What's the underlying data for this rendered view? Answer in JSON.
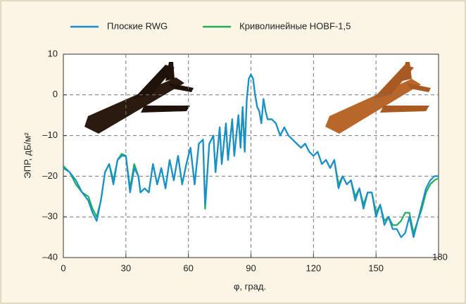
{
  "chart_data": {
    "type": "line",
    "xlabel": "φ, град.",
    "ylabel": "ЭПР, дБ/м²",
    "xlim": [
      0,
      180
    ],
    "ylim": [
      -40,
      10
    ],
    "xticks": [
      0,
      30,
      60,
      90,
      120,
      150,
      180
    ],
    "yticks": [
      10,
      0,
      {
        "value": -10,
        "label": "–10"
      },
      {
        "value": -20,
        "label": "–20"
      },
      {
        "value": -30,
        "label": "–30"
      },
      {
        "value": -40,
        "label": "–40"
      }
    ],
    "grid": true,
    "legend": "top",
    "x": [
      0,
      3,
      6,
      9,
      12,
      14,
      16,
      18,
      20,
      22,
      24,
      26,
      28,
      30,
      32,
      34,
      36,
      37,
      39,
      41,
      43,
      45,
      47,
      49,
      51,
      53,
      55,
      57,
      59,
      61,
      63,
      65,
      67,
      68,
      70,
      72,
      73,
      75,
      76,
      78,
      79,
      81,
      82,
      84,
      85,
      86,
      87,
      88,
      89,
      90,
      91,
      92,
      93,
      94,
      95,
      96,
      97,
      98,
      100,
      102,
      104,
      106,
      108,
      110,
      112,
      114,
      116,
      118,
      120,
      122,
      124,
      126,
      128,
      130,
      132,
      134,
      136,
      138,
      140,
      142,
      144,
      146,
      148,
      150,
      152,
      154,
      156,
      158,
      160,
      162,
      164,
      166,
      168,
      170,
      172,
      174,
      176,
      178,
      180
    ],
    "series": [
      {
        "name": "Плоские RWG",
        "color": "#1a8fc9",
        "values": [
          -18,
          -19,
          -21,
          -24,
          -26,
          -29,
          -31,
          -26,
          -19,
          -17,
          -22,
          -16,
          -15,
          -15,
          -24,
          -18,
          -20,
          -24,
          -23,
          -24,
          -17,
          -22,
          -18,
          -23,
          -16,
          -21,
          -15,
          -22,
          -17,
          -13,
          -22,
          -12,
          -11,
          -27,
          -12,
          -10,
          -19,
          -8,
          -17,
          -7,
          -16,
          -6,
          -15,
          -5,
          -13,
          -3,
          -14,
          -1,
          4,
          5,
          4,
          0,
          -3,
          -4,
          -7,
          -1,
          -4,
          -6,
          -6,
          -7,
          -10,
          -8,
          -10,
          -11,
          -12,
          -13,
          -12,
          -14,
          -15,
          -14,
          -17,
          -16,
          -18,
          -16,
          -23,
          -20,
          -22,
          -21,
          -26,
          -23,
          -28,
          -24,
          -24,
          -30,
          -27,
          -32,
          -30,
          -33,
          -33,
          -35,
          -34,
          -30,
          -35,
          -31,
          -27,
          -23,
          -21,
          -20,
          -20
        ]
      },
      {
        "name": "Криволинейные HOBF-1,5",
        "color": "#1fae5a",
        "values": [
          -17.5,
          -19,
          -22,
          -24,
          -25,
          -28,
          -30,
          -26,
          -19,
          -17,
          -21,
          -16,
          -14.5,
          -15,
          -23,
          -17,
          -20,
          -24,
          -23,
          -24,
          -17,
          -22,
          -18,
          -23,
          -16,
          -21,
          -15,
          -22,
          -17,
          -13,
          -22,
          -12,
          -11,
          -28,
          -12,
          -10,
          -19,
          -8,
          -17,
          -7,
          -16,
          -6,
          -15,
          -5,
          -13,
          -3,
          -14,
          -1,
          4,
          5,
          4,
          0,
          -3,
          -4,
          -7,
          -1,
          -4,
          -6,
          -6,
          -7,
          -10,
          -8,
          -10,
          -11,
          -12,
          -13,
          -12,
          -14,
          -15,
          -14,
          -17,
          -16,
          -18,
          -16,
          -22,
          -20,
          -22,
          -21,
          -25,
          -23,
          -27,
          -24,
          -24,
          -29,
          -27,
          -31,
          -30,
          -32,
          -32,
          -31,
          -29,
          -29,
          -34,
          -31,
          -28,
          -24,
          -22,
          -21,
          -20.5
        ]
      }
    ]
  }
}
